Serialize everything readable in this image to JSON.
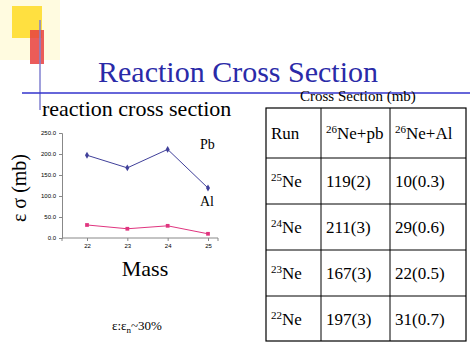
{
  "title": "Reaction Cross Section",
  "chart_data": {
    "type": "line",
    "title": "reaction cross section",
    "x_label": "Mass",
    "y_label": "ε σ (mb)",
    "categories": [
      "22",
      "23",
      "24",
      "25"
    ],
    "series": [
      {
        "name": "Pb",
        "color": "#40409a",
        "marker": "diamond",
        "values": [
          197,
          167,
          211,
          119
        ]
      },
      {
        "name": "Al",
        "color": "#e0357f",
        "marker": "square",
        "values": [
          31,
          22,
          29,
          10
        ]
      }
    ],
    "ylim": [
      0,
      250
    ],
    "yticks": [
      {
        "value": 0,
        "label": "0.0"
      },
      {
        "value": 50,
        "label": "50.0"
      },
      {
        "value": 100,
        "label": "100.0"
      },
      {
        "value": 150,
        "label": "150.0"
      },
      {
        "value": 200,
        "label": "200.0"
      },
      {
        "value": 250,
        "label": "250.0"
      }
    ],
    "grid": false
  },
  "note": [
    "ε:ε",
    "n",
    "~30%"
  ],
  "table": {
    "caption": "Cross Section (mb)",
    "header": [
      {
        "text": "Run"
      },
      {
        "sup": "26",
        "text": "Ne+pb"
      },
      {
        "sup": "26",
        "text": "Ne+Al"
      }
    ],
    "rows": [
      [
        {
          "sup": "25",
          "text": "Ne"
        },
        {
          "text": "119(2)"
        },
        {
          "text": "10(0.3)"
        }
      ],
      [
        {
          "sup": "24",
          "text": "Ne"
        },
        {
          "text": "211(3)"
        },
        {
          "text": "29(0.6)"
        }
      ],
      [
        {
          "sup": "23",
          "text": "Ne"
        },
        {
          "text": "167(3)"
        },
        {
          "text": "22(0.5)"
        }
      ],
      [
        {
          "sup": "22",
          "text": "Ne"
        },
        {
          "text": "197(3)"
        },
        {
          "text": "31(0.7)"
        }
      ]
    ]
  }
}
